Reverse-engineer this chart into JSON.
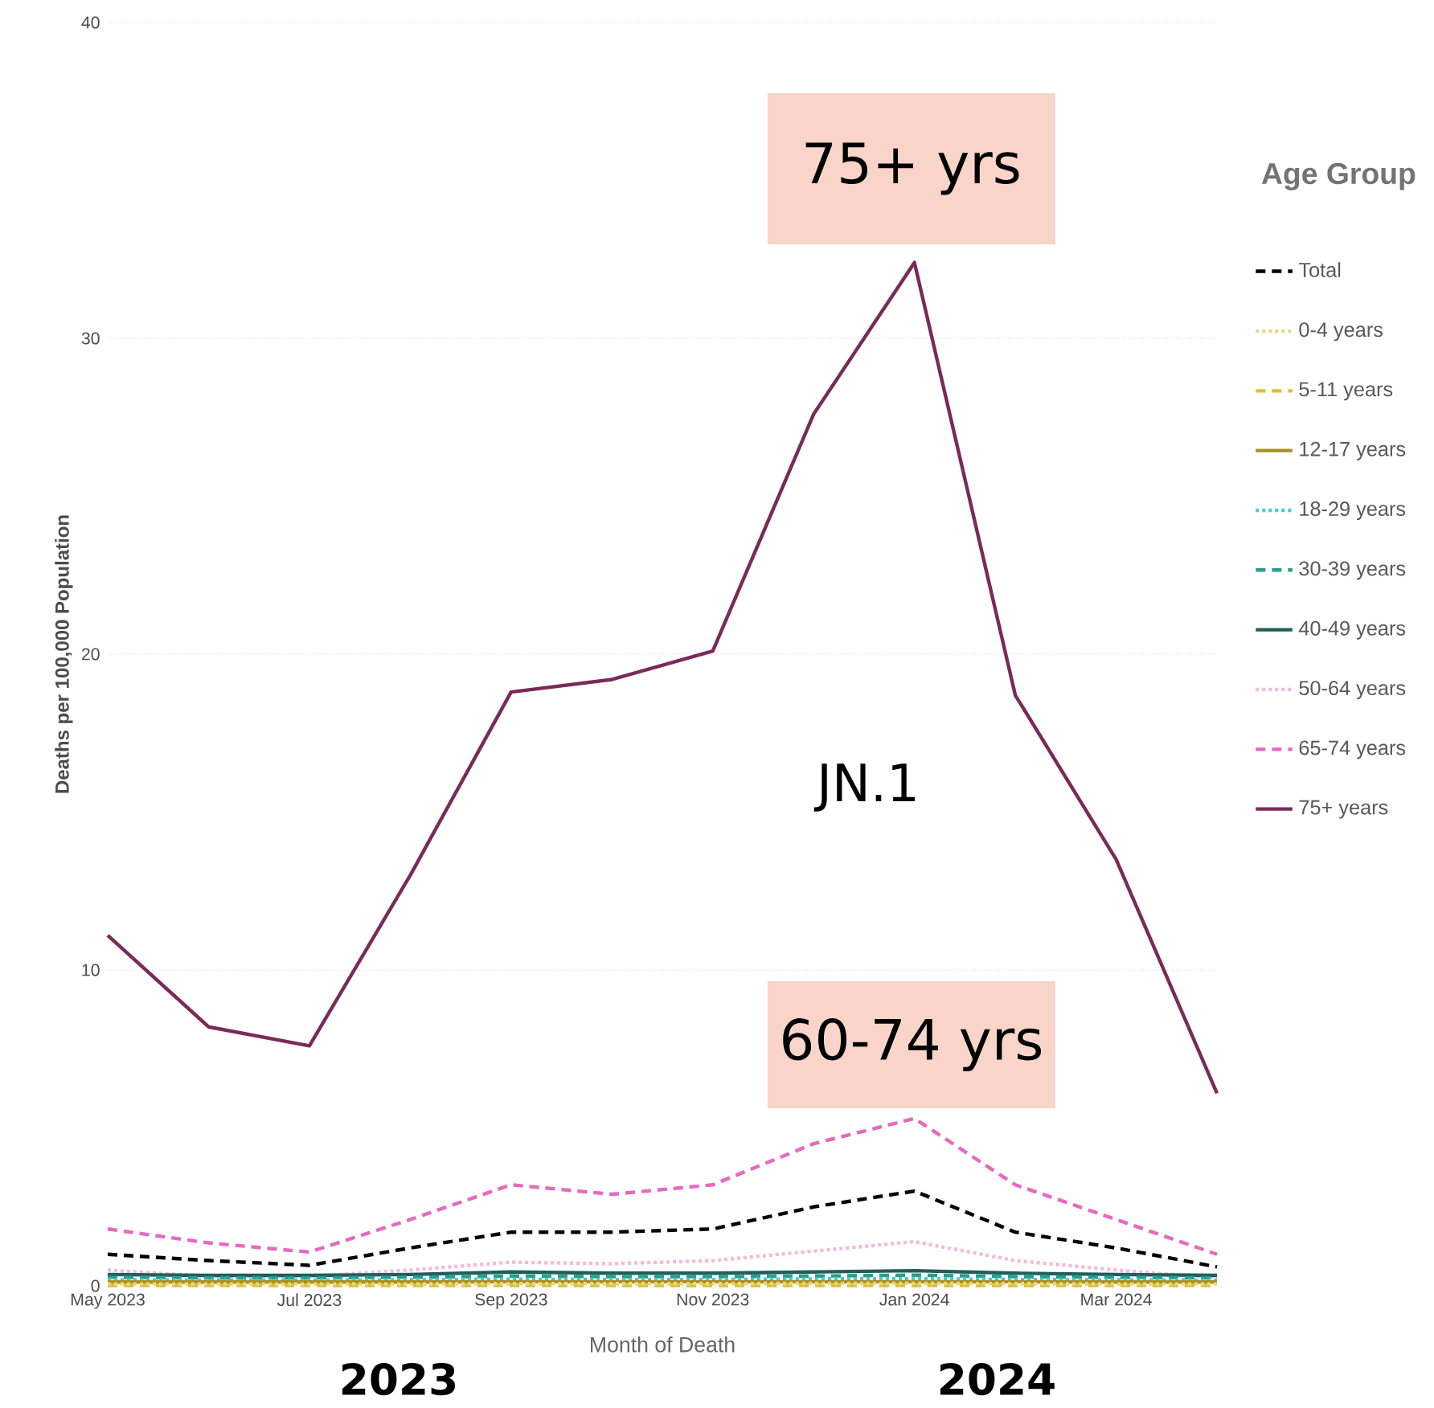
{
  "chart_data": {
    "type": "line",
    "xlabel": "Month of Death",
    "ylabel": "Deaths per 100,000 Population",
    "legend_title": "Age Group",
    "categories": [
      "May 2023",
      null,
      "Jul 2023",
      null,
      "Sep 2023",
      null,
      "Nov 2023",
      null,
      "Jan 2024",
      null,
      "Mar 2024",
      null
    ],
    "ylim": [
      0,
      40
    ],
    "yticks": [
      0,
      10,
      20,
      30,
      40
    ],
    "grid": "y",
    "legend": "right",
    "annotations": [
      "75+ yrs",
      "60-74 yrs",
      "JN.1",
      "2023",
      "2024"
    ],
    "series": [
      {
        "name": "Total",
        "color": "#000000",
        "line_style": "dashed",
        "values": [
          1.0,
          0.8,
          0.65,
          1.2,
          1.7,
          1.7,
          1.8,
          2.5,
          3.0,
          1.7,
          1.2,
          0.6
        ]
      },
      {
        "name": "0-4 years",
        "color": "#e8d87a",
        "line_style": "dotted",
        "values": [
          0.06,
          0.06,
          0.06,
          0.06,
          0.07,
          0.07,
          0.07,
          0.08,
          0.08,
          0.07,
          0.06,
          0.06
        ]
      },
      {
        "name": "5-11 years",
        "color": "#e0c030",
        "line_style": "dashed",
        "values": [
          0.01,
          0.01,
          0.01,
          0.01,
          0.01,
          0.01,
          0.01,
          0.01,
          0.01,
          0.01,
          0.01,
          0.01
        ]
      },
      {
        "name": "12-17 years",
        "color": "#a89020",
        "line_style": "solid",
        "values": [
          0.12,
          0.12,
          0.12,
          0.12,
          0.13,
          0.13,
          0.13,
          0.13,
          0.13,
          0.13,
          0.12,
          0.12
        ]
      },
      {
        "name": "18-29 years",
        "color": "#40d0d0",
        "line_style": "dotted",
        "values": [
          0.19,
          0.18,
          0.18,
          0.19,
          0.21,
          0.2,
          0.2,
          0.22,
          0.23,
          0.2,
          0.19,
          0.18
        ]
      },
      {
        "name": "30-39 years",
        "color": "#2a9d8f",
        "line_style": "dashed",
        "values": [
          0.27,
          0.25,
          0.25,
          0.27,
          0.31,
          0.29,
          0.29,
          0.31,
          0.34,
          0.29,
          0.27,
          0.25
        ]
      },
      {
        "name": "40-49 years",
        "color": "#1f5f5b",
        "line_style": "solid",
        "values": [
          0.36,
          0.33,
          0.33,
          0.36,
          0.44,
          0.4,
          0.4,
          0.44,
          0.48,
          0.4,
          0.36,
          0.33
        ]
      },
      {
        "name": "50-64 years",
        "color": "#f5b8dc",
        "line_style": "dotted",
        "values": [
          0.5,
          0.3,
          0.3,
          0.5,
          0.75,
          0.7,
          0.8,
          1.1,
          1.4,
          0.8,
          0.5,
          0.25
        ]
      },
      {
        "name": "65-74 years",
        "color": "#e868c0",
        "line_style": "dashed",
        "values": [
          1.8,
          1.36,
          1.07,
          2.1,
          3.2,
          2.9,
          3.2,
          4.5,
          5.3,
          3.2,
          2.1,
          1.0
        ]
      },
      {
        "name": "75+ years",
        "color": "#7a2a5a",
        "line_style": "solid",
        "values": [
          11.1,
          8.2,
          7.6,
          13.0,
          18.8,
          19.2,
          20.1,
          27.6,
          32.4,
          18.7,
          13.5,
          6.1
        ]
      }
    ]
  }
}
